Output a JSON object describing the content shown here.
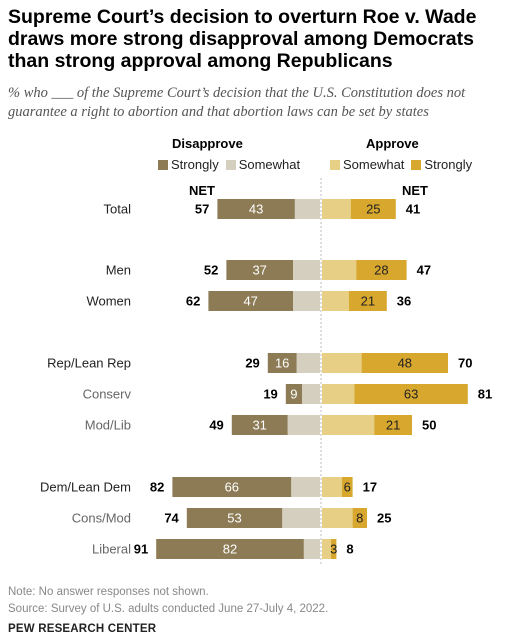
{
  "title": "Supreme Court’s decision to overturn Roe v. Wade draws more strong disapproval among Democrats than strong approval among Republicans",
  "subtitle": "% who ___ of the Supreme Court’s decision that the U.S. Constitution does not guarantee a right to abortion and that abortion laws can be set by states",
  "headers": {
    "disapprove": "Disapprove",
    "approve": "Approve",
    "net_left": "NET",
    "net_right": "NET"
  },
  "legend": [
    {
      "label": "Strongly",
      "color": "#8c7b55"
    },
    {
      "label": "Somewhat",
      "color": "#d4cfbf"
    },
    {
      "label": "Somewhat",
      "color": "#e8cf86"
    },
    {
      "label": "Strongly",
      "color": "#d7a72e"
    }
  ],
  "colors": {
    "disapprove_strongly": "#8c7b55",
    "disapprove_somewhat": "#d4cfbf",
    "approve_somewhat": "#e8cf86",
    "approve_strongly": "#d7a72e"
  },
  "chart_data": {
    "type": "bar",
    "orientation": "horizontal-diverging",
    "rows": [
      {
        "label": "Total",
        "dis_strong": 43,
        "dis_net": 57,
        "app_strong": 25,
        "app_net": 41,
        "sub": false
      },
      {
        "label": "Men",
        "dis_strong": 37,
        "dis_net": 52,
        "app_strong": 28,
        "app_net": 47,
        "sub": false
      },
      {
        "label": "Women",
        "dis_strong": 47,
        "dis_net": 62,
        "app_strong": 21,
        "app_net": 36,
        "sub": false
      },
      {
        "label": "Rep/Lean Rep",
        "dis_strong": 16,
        "dis_net": 29,
        "app_strong": 48,
        "app_net": 70,
        "sub": false
      },
      {
        "label": "Conserv",
        "dis_strong": 9,
        "dis_net": 19,
        "app_strong": 63,
        "app_net": 81,
        "sub": true
      },
      {
        "label": "Mod/Lib",
        "dis_strong": 31,
        "dis_net": 49,
        "app_strong": 21,
        "app_net": 50,
        "sub": true
      },
      {
        "label": "Dem/Lean Dem",
        "dis_strong": 66,
        "dis_net": 82,
        "app_strong": 6,
        "app_net": 17,
        "sub": false
      },
      {
        "label": "Cons/Mod",
        "dis_strong": 53,
        "dis_net": 74,
        "app_strong": 8,
        "app_net": 25,
        "sub": true
      },
      {
        "label": "Liberal",
        "dis_strong": 82,
        "dis_net": 91,
        "app_strong": 3,
        "app_net": 8,
        "sub": true
      }
    ]
  },
  "notes": {
    "note": "Note: No answer responses not shown.",
    "source": "Source: Survey of U.S. adults conducted June 27-July 4, 2022."
  },
  "organization": "PEW RESEARCH CENTER"
}
